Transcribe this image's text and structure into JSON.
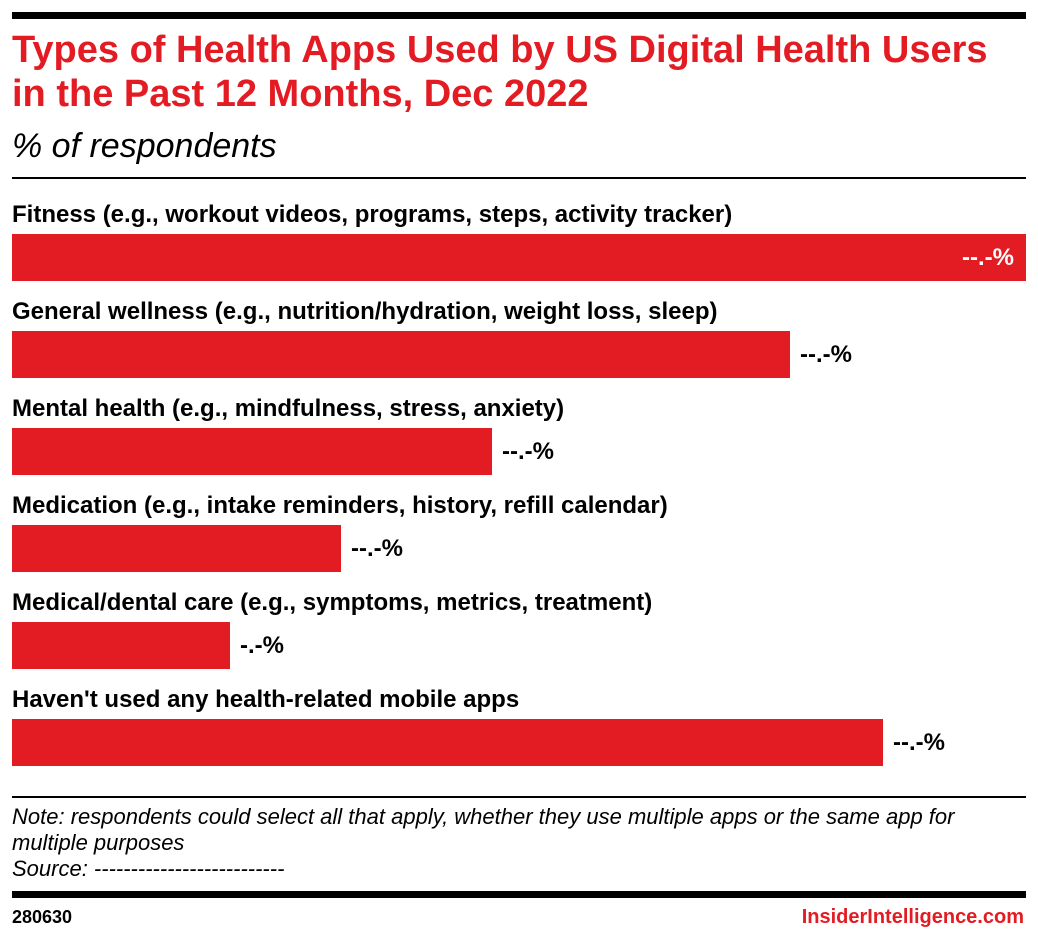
{
  "header": {
    "title": "Types of Health Apps Used by US Digital Health Users in the Past 12 Months, Dec 2022",
    "subtitle": "% of respondents"
  },
  "chart_data": {
    "type": "bar",
    "orientation": "horizontal",
    "categories": [
      "Fitness (e.g., workout videos, programs, steps, activity tracker)",
      "General wellness (e.g., nutrition/hydration, weight loss, sleep)",
      "Mental health (e.g., mindfulness, stress, anxiety)",
      "Medication (e.g., intake reminders, history, refill calendar)",
      "Medical/dental care (e.g., symptoms, metrics, treatment)",
      "Haven't used any health-related mobile apps"
    ],
    "values": [
      100,
      76.7,
      47.3,
      32.4,
      21.5,
      85.9
    ],
    "value_labels": [
      "--.-%",
      "--.-%",
      "--.-%",
      "--.-%",
      "-.-%",
      "--.-%"
    ],
    "value_scale_note_free": true,
    "xlim": [
      0,
      100
    ],
    "grid": false,
    "legend": "none",
    "colors": {
      "bar": "#e31b23",
      "title": "#e31b23",
      "text": "#000000",
      "value_label_inside": "#ffffff"
    }
  },
  "footer": {
    "note": "Note: respondents could select all that apply, whether they use multiple apps or the same app for multiple purposes",
    "source": "Source: --------------------------",
    "chart_id": "280630",
    "brand": "InsiderIntelligence.com"
  }
}
